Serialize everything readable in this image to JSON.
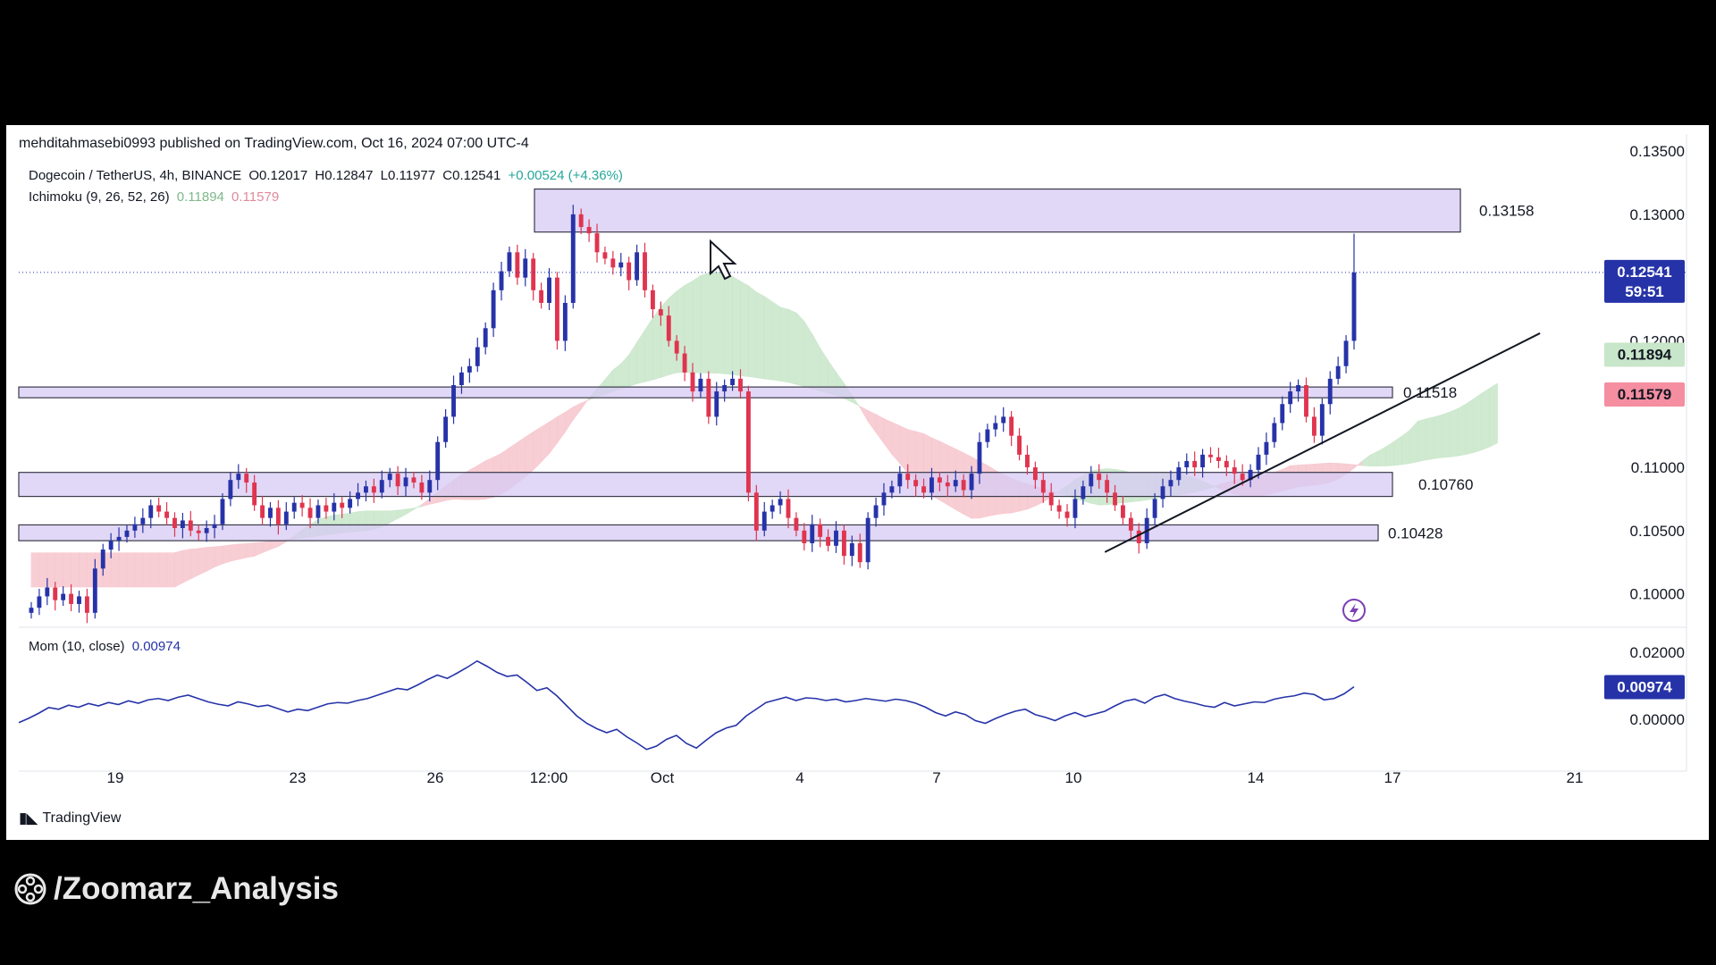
{
  "publisher": "mehditahmasebi0993 published on TradingView.com, Oct 16, 2024 07:00 UTC-4",
  "legend": {
    "symbol": "Dogecoin / TetherUS, 4h, BINANCE",
    "open": "O0.12017",
    "high": "H0.12847",
    "low": "L0.11977",
    "close": "C0.12541",
    "change": "+0.00524 (+4.36%)",
    "ichimoku_label": "Ichimoku (9, 26, 52, 26)",
    "ichimoku_v1": "0.11894",
    "ichimoku_v2": "0.11579",
    "mom_label": "Mom (10, close)",
    "mom_value": "0.00974"
  },
  "branding": {
    "tradingview": "TradingView",
    "channel": "/Zoomarz_Analysis"
  },
  "colors": {
    "bull": "#2633a8",
    "bear": "#e0344f",
    "zone": "#d7c9f3",
    "cloud_green": "#c8e6c9",
    "cloud_red": "#f7c6ce"
  },
  "chart_data": {
    "type": "candlestick",
    "price_axis": {
      "ticks": [
        "0.13500",
        "0.13000",
        "0.12000",
        "0.11000",
        "0.10500",
        "0.10000"
      ],
      "range": [
        0.0975,
        0.1355
      ]
    },
    "time_axis": {
      "labels": [
        "19",
        "23",
        "26",
        "12:00",
        "Oct",
        "4",
        "7",
        "10",
        "14",
        "17",
        "21"
      ]
    },
    "current_price": {
      "value": "0.12541",
      "countdown": "59:51"
    },
    "ichimoku_tags": [
      {
        "value": "0.11894",
        "color": "#c8e6c9"
      },
      {
        "value": "0.11579",
        "color": "#f48ea0"
      }
    ],
    "zones": [
      {
        "label": "0.13158",
        "low": 0.1286,
        "high": 0.132
      },
      {
        "label": "0.11518",
        "low": 0.1155,
        "high": 0.11635
      },
      {
        "label": "0.10760",
        "low": 0.1077,
        "high": 0.1096
      },
      {
        "label": "0.10428",
        "low": 0.1042,
        "high": 0.10545
      }
    ],
    "close_series": [
      0.0989,
      0.0998,
      0.1005,
      0.0995,
      0.1,
      0.0992,
      0.0998,
      0.0985,
      0.102,
      0.1035,
      0.1042,
      0.1045,
      0.105,
      0.1055,
      0.106,
      0.107,
      0.1065,
      0.106,
      0.1052,
      0.1058,
      0.105,
      0.1048,
      0.1052,
      0.1055,
      0.1075,
      0.109,
      0.1095,
      0.1088,
      0.107,
      0.106,
      0.1068,
      0.1055,
      0.1065,
      0.1072,
      0.1068,
      0.106,
      0.107,
      0.1065,
      0.1072,
      0.1068,
      0.1075,
      0.108,
      0.1085,
      0.108,
      0.109,
      0.1095,
      0.1085,
      0.1092,
      0.1088,
      0.108,
      0.109,
      0.112,
      0.114,
      0.1165,
      0.1175,
      0.118,
      0.1195,
      0.121,
      0.124,
      0.1255,
      0.127,
      0.125,
      0.1265,
      0.124,
      0.123,
      0.125,
      0.12,
      0.123,
      0.13,
      0.129,
      0.1285,
      0.127,
      0.1265,
      0.1258,
      0.1262,
      0.1248,
      0.127,
      0.124,
      0.1225,
      0.122,
      0.12,
      0.119,
      0.1175,
      0.116,
      0.117,
      0.114,
      0.116,
      0.1165,
      0.117,
      0.116,
      0.108,
      0.105,
      0.1065,
      0.107,
      0.1075,
      0.106,
      0.105,
      0.104,
      0.1055,
      0.1045,
      0.1038,
      0.105,
      0.103,
      0.104,
      0.1025,
      0.106,
      0.107,
      0.108,
      0.1085,
      0.1095,
      0.109,
      0.1085,
      0.108,
      0.1092,
      0.1088,
      0.1085,
      0.109,
      0.1082,
      0.1095,
      0.112,
      0.113,
      0.1135,
      0.114,
      0.1125,
      0.111,
      0.11,
      0.109,
      0.108,
      0.107,
      0.1065,
      0.106,
      0.1075,
      0.1085,
      0.1095,
      0.109,
      0.108,
      0.107,
      0.106,
      0.105,
      0.104,
      0.106,
      0.1075,
      0.1085,
      0.109,
      0.11,
      0.1105,
      0.11,
      0.111,
      0.1108,
      0.1105,
      0.11,
      0.1095,
      0.109,
      0.1098,
      0.111,
      0.112,
      0.1135,
      0.115,
      0.116,
      0.1165,
      0.114,
      0.1125,
      0.115,
      0.117,
      0.118,
      0.12,
      0.1254
    ],
    "momentum": {
      "ticks": [
        "0.02000",
        "0.00000"
      ],
      "range": [
        -0.012,
        0.024
      ],
      "current": "0.00974",
      "values": [
        -0.001,
        0.0003,
        0.0018,
        0.0035,
        0.003,
        0.0042,
        0.0036,
        0.0047,
        0.004,
        0.005,
        0.0044,
        0.0055,
        0.0048,
        0.0058,
        0.0062,
        0.0056,
        0.0066,
        0.0072,
        0.0062,
        0.0052,
        0.0045,
        0.004,
        0.0052,
        0.0046,
        0.0038,
        0.0042,
        0.0032,
        0.0022,
        0.003,
        0.0026,
        0.0036,
        0.0046,
        0.005,
        0.0048,
        0.0056,
        0.0062,
        0.0072,
        0.0082,
        0.0092,
        0.0088,
        0.0102,
        0.0118,
        0.0132,
        0.0122,
        0.0138,
        0.0155,
        0.0174,
        0.0158,
        0.014,
        0.0128,
        0.0132,
        0.011,
        0.0086,
        0.0094,
        0.007,
        0.004,
        0.001,
        -0.0012,
        -0.0028,
        -0.004,
        -0.003,
        -0.0052,
        -0.007,
        -0.009,
        -0.008,
        -0.006,
        -0.0048,
        -0.0072,
        -0.0086,
        -0.0062,
        -0.004,
        -0.0026,
        -0.0018,
        0.001,
        0.003,
        0.005,
        0.0058,
        0.0066,
        0.0056,
        0.0064,
        0.0062,
        0.0056,
        0.006,
        0.0052,
        0.0056,
        0.0062,
        0.0058,
        0.0054,
        0.006,
        0.0056,
        0.0048,
        0.0036,
        0.002,
        0.001,
        0.0022,
        0.0014,
        -0.0004,
        -0.0012,
        0.0002,
        0.0014,
        0.0024,
        0.003,
        0.0014,
        0.0006,
        -0.0004,
        0.001,
        0.002,
        0.0008,
        0.0016,
        0.0024,
        0.004,
        0.0054,
        0.006,
        0.0048,
        0.0066,
        0.0074,
        0.0062,
        0.0054,
        0.0048,
        0.004,
        0.0036,
        0.005,
        0.004,
        0.0046,
        0.0052,
        0.005,
        0.006,
        0.0066,
        0.007,
        0.0078,
        0.0074,
        0.0058,
        0.0062,
        0.0076,
        0.0097
      ]
    },
    "trendline": {
      "from": [
        0.11,
        0.1033
      ],
      "to": [
        0.85,
        0.1206
      ]
    }
  }
}
